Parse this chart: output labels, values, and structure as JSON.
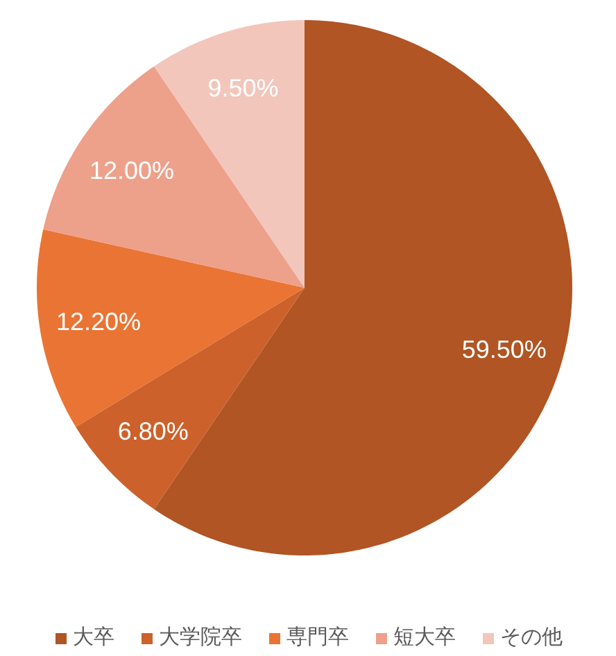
{
  "chart_data": {
    "type": "pie",
    "categories": [
      "大卒",
      "大学院卒",
      "専門卒",
      "短大卒",
      "その他"
    ],
    "values": [
      59.5,
      6.8,
      12.2,
      12.0,
      9.5
    ],
    "colors": [
      "#b05523",
      "#cc612b",
      "#e97433",
      "#eda08a",
      "#f2c6bb"
    ],
    "value_labels": [
      "59.50%",
      "6.80%",
      "12.20%",
      "12.00%",
      "9.50%"
    ],
    "legend": "bottom"
  }
}
